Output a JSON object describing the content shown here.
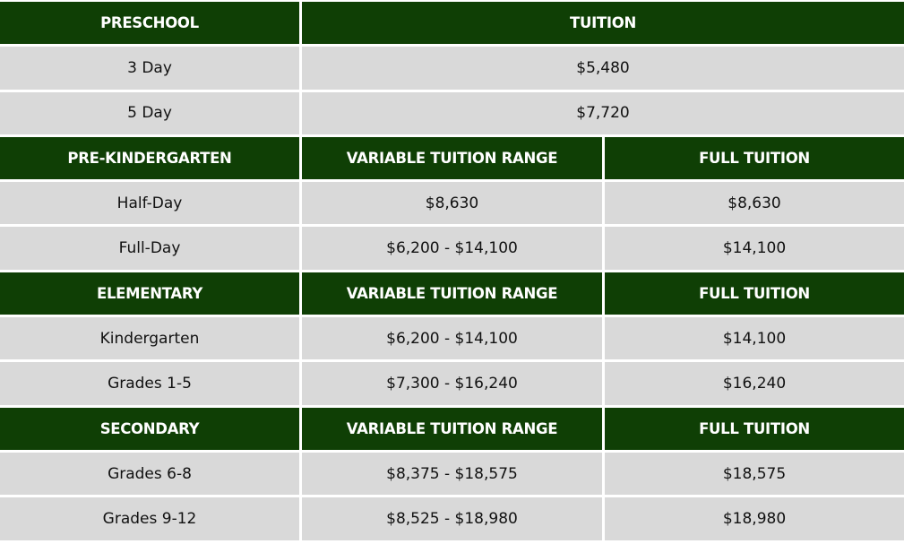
{
  "colors": {
    "header_bg": "#0f3f05",
    "row_bg": "#d9d9d9",
    "header_text": "#ffffff"
  },
  "sections": [
    {
      "headers": [
        "PRESCHOOL",
        "TUITION"
      ],
      "rows": [
        [
          "3 Day",
          "$5,480"
        ],
        [
          "5 Day",
          "$7,720"
        ]
      ]
    },
    {
      "headers": [
        "PRE-KINDERGARTEN",
        "VARIABLE TUITION RANGE",
        "FULL TUITION"
      ],
      "rows": [
        [
          "Half-Day",
          "$8,630",
          "$8,630"
        ],
        [
          "Full-Day",
          "$6,200 - $14,100",
          "$14,100"
        ]
      ]
    },
    {
      "headers": [
        "ELEMENTARY",
        "VARIABLE TUITION RANGE",
        "FULL TUITION"
      ],
      "rows": [
        [
          "Kindergarten",
          "$6,200 - $14,100",
          "$14,100"
        ],
        [
          "Grades 1-5",
          "$7,300 - $16,240",
          "$16,240"
        ]
      ]
    },
    {
      "headers": [
        "SECONDARY",
        "VARIABLE TUITION RANGE",
        "FULL TUITION"
      ],
      "rows": [
        [
          "Grades 6-8",
          "$8,375 - $18,575",
          "$18,575"
        ],
        [
          "Grades 9-12",
          "$8,525 - $18,980",
          "$18,980"
        ]
      ]
    }
  ]
}
